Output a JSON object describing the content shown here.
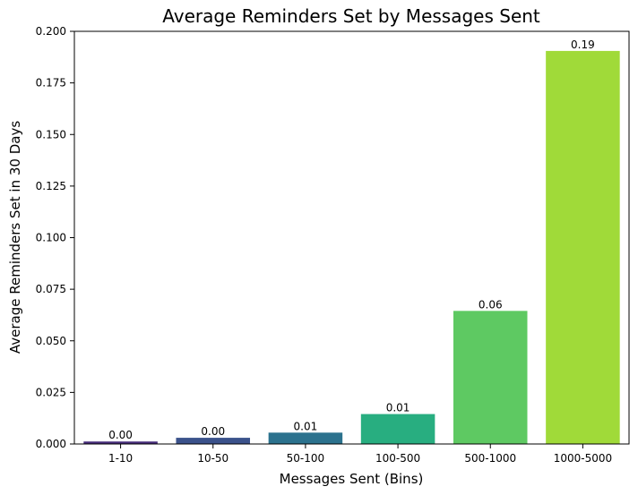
{
  "chart_data": {
    "type": "bar",
    "title": "Average Reminders Set by Messages Sent",
    "xlabel": "Messages Sent (Bins)",
    "ylabel": "Average Reminders Set in 30 Days",
    "categories": [
      "1-10",
      "10-50",
      "50-100",
      "100-500",
      "500-1000",
      "1000-5000"
    ],
    "values": [
      0.0012,
      0.003,
      0.0055,
      0.0145,
      0.0645,
      0.1905
    ],
    "data_labels": [
      "0.00",
      "0.00",
      "0.01",
      "0.01",
      "0.06",
      "0.19"
    ],
    "colors": [
      "#472d7b",
      "#3b528b",
      "#2c728e",
      "#28ae80",
      "#5ec962",
      "#a0da39"
    ],
    "ylim": [
      0,
      0.2
    ],
    "yticks": [
      0.0,
      0.025,
      0.05,
      0.075,
      0.1,
      0.125,
      0.15,
      0.175,
      0.2
    ],
    "ytick_labels": [
      "0.000",
      "0.025",
      "0.050",
      "0.075",
      "0.100",
      "0.125",
      "0.150",
      "0.175",
      "0.200"
    ],
    "grid": false,
    "legend": "none"
  }
}
